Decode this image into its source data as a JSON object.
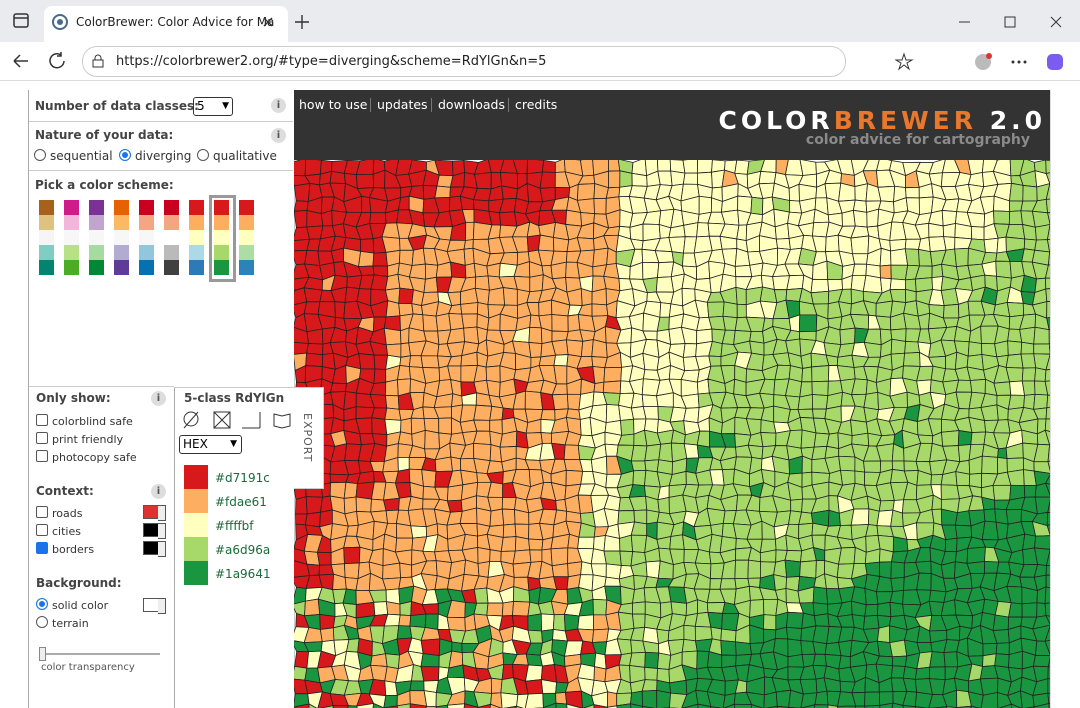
{
  "browser": {
    "tab_title": "ColorBrewer: Color Advice for Ma",
    "url": "https://colorbrewer2.org/#type=diverging&scheme=RdYlGn&n=5"
  },
  "header": {
    "nav": [
      "how to use",
      "updates",
      "downloads",
      "credits"
    ],
    "logo": {
      "color": "COLOR",
      "brewer": "BREWER",
      "version": "2.0",
      "tagline": "color advice for cartography"
    }
  },
  "controls": {
    "info": "i",
    "classes_label": "Number of data classes:",
    "classes_value": "5",
    "nature_label": "Nature of your data:",
    "nature_options": [
      "sequential",
      "diverging",
      "qualitative"
    ],
    "scheme_label": "Pick a color scheme:"
  },
  "filters": {
    "label": "Only show:",
    "options": [
      "colorblind safe",
      "print friendly",
      "photocopy safe"
    ]
  },
  "context": {
    "label": "Context:",
    "options": [
      "roads",
      "cities",
      "borders"
    ]
  },
  "background": {
    "label": "Background:",
    "options": [
      "solid color",
      "terrain"
    ],
    "transparency": "color transparency"
  },
  "legend": {
    "title": "5-class RdYlGn",
    "format": "HEX",
    "export": "EXPORT",
    "colors": [
      "#d7191c",
      "#fdae61",
      "#ffffbf",
      "#a6d96a",
      "#1a9641"
    ]
  }
}
